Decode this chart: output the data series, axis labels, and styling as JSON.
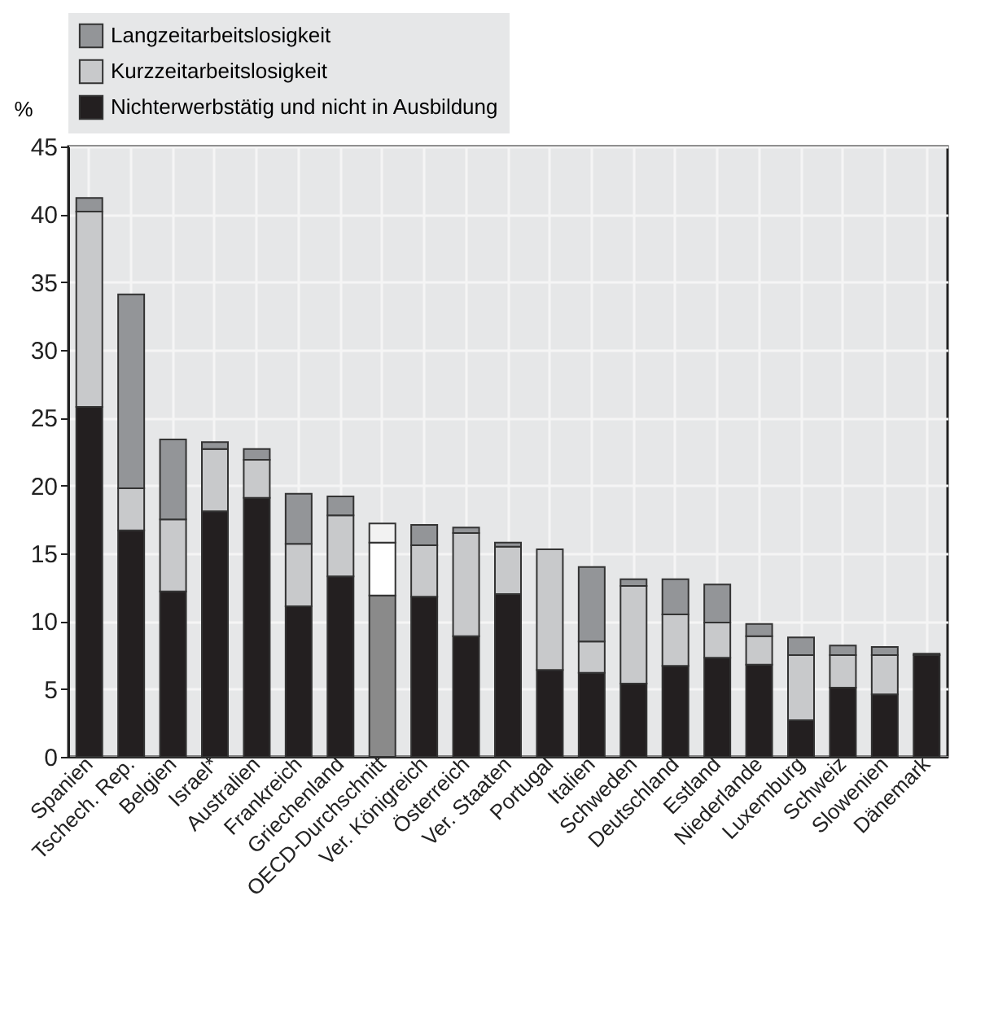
{
  "chart_data": {
    "type": "bar",
    "stacked": true,
    "ylabel": "%",
    "legend": "top",
    "grid": true,
    "categories": [
      "Spanien",
      "Tschech. Rep.",
      "Belgien",
      "Israel*",
      "Australien",
      "Frankreich",
      "Griechenland",
      "OECD-Durchschnitt",
      "Ver. Königreich",
      "Österreich",
      "Ver. Staaten",
      "Portugal",
      "Italien",
      "Schweden",
      "Deutschland",
      "Estland",
      "Niederlande",
      "Luxemburg",
      "Schweiz",
      "Slowenien",
      "Dänemark"
    ],
    "ylim": [
      0,
      45
    ],
    "yticks": [
      0,
      5,
      10,
      15,
      20,
      25,
      30,
      35,
      40,
      45
    ],
    "series": [
      {
        "name": "Nichterwerbstätig und nicht in Ausbildung",
        "color": "#231f20",
        "colors": [
          "#231f20",
          "#231f20",
          "#231f20",
          "#231f20",
          "#231f20",
          "#231f20",
          "#231f20",
          "#8a8a8a",
          "#231f20",
          "#231f20",
          "#231f20",
          "#231f20",
          "#231f20",
          "#231f20",
          "#231f20",
          "#231f20",
          "#231f20",
          "#231f20",
          "#231f20",
          "#231f20",
          "#231f20"
        ],
        "values": [
          25.8,
          16.7,
          12.2,
          18.1,
          19.1,
          11.1,
          13.3,
          11.9,
          11.8,
          8.9,
          12.0,
          6.4,
          6.2,
          5.4,
          6.7,
          7.3,
          6.8,
          2.7,
          5.1,
          4.6,
          7.5
        ]
      },
      {
        "name": "Kurzzeitarbeitslosigkeit",
        "color": "#c8c9cb",
        "colors": [
          "#c8c9cb",
          "#c8c9cb",
          "#c8c9cb",
          "#c8c9cb",
          "#c8c9cb",
          "#c8c9cb",
          "#c8c9cb",
          "#ffffff",
          "#c8c9cb",
          "#c8c9cb",
          "#c8c9cb",
          "#c8c9cb",
          "#c8c9cb",
          "#c8c9cb",
          "#c8c9cb",
          "#c8c9cb",
          "#c8c9cb",
          "#c8c9cb",
          "#c8c9cb",
          "#c8c9cb",
          "#c8c9cb"
        ],
        "values": [
          14.4,
          3.1,
          5.3,
          4.6,
          2.8,
          4.6,
          4.5,
          3.9,
          3.8,
          7.6,
          3.5,
          8.9,
          2.3,
          7.2,
          3.8,
          2.6,
          2.1,
          4.8,
          2.4,
          2.9,
          null
        ]
      },
      {
        "name": "Langzeitarbeitslosigkeit",
        "color": "#939598",
        "colors": [
          "#939598",
          "#939598",
          "#939598",
          "#939598",
          "#939598",
          "#939598",
          "#939598",
          "#f2f2f2",
          "#939598",
          "#939598",
          "#939598",
          "#939598",
          "#939598",
          "#939598",
          "#939598",
          "#939598",
          "#939598",
          "#939598",
          "#939598",
          "#939598",
          "#939598"
        ],
        "values": [
          1.0,
          14.3,
          5.9,
          0.5,
          0.8,
          3.7,
          1.4,
          1.4,
          1.5,
          0.4,
          0.3,
          null,
          5.5,
          0.5,
          2.6,
          2.8,
          0.9,
          1.3,
          0.7,
          0.6,
          0.1
        ]
      }
    ]
  }
}
